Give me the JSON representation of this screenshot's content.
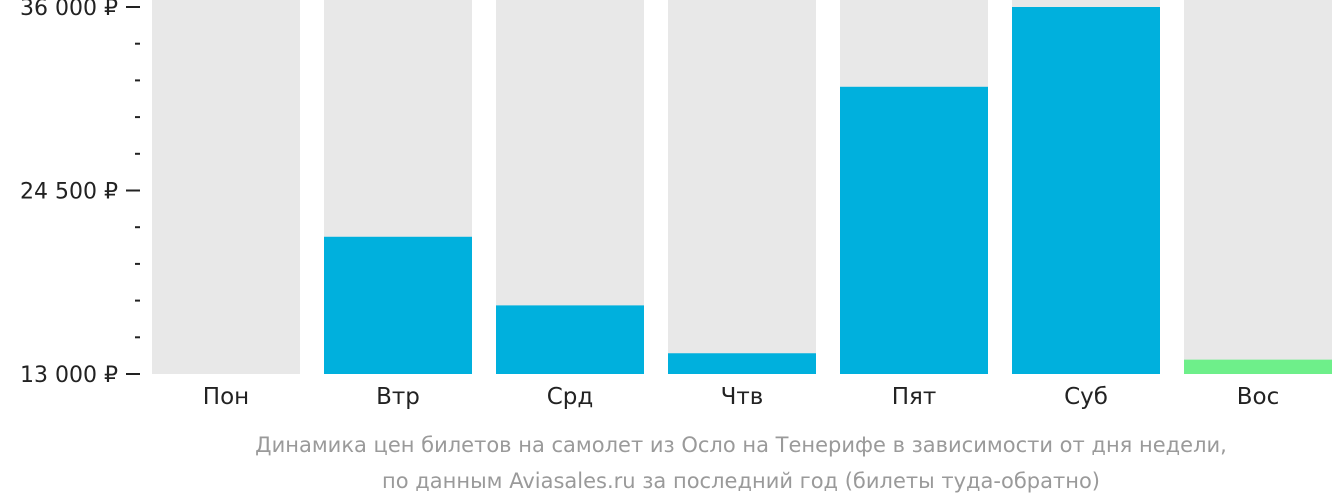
{
  "chart_data": {
    "type": "bar",
    "categories": [
      "Пон",
      "Втр",
      "Срд",
      "Чтв",
      "Пят",
      "Суб",
      "Вос"
    ],
    "values": [
      null,
      21600,
      17300,
      14300,
      31000,
      36000,
      13900
    ],
    "ylim": [
      13000,
      36000
    ],
    "y_major_ticks": [
      13000,
      24500,
      36000
    ],
    "y_tick_labels": [
      "13 000 ₽",
      "24 500 ₽",
      "36 000 ₽"
    ],
    "y_minor_ticks": [
      15300,
      17600,
      19900,
      22200,
      26800,
      29100,
      31400,
      33700
    ],
    "caption_line1": "Динамика цен билетов на самолет из Осло на Тенерифе в зависимости от дня недели,",
    "caption_line2": "по данным Aviasales.ru за последний год (билеты туда-обратно)",
    "colors": {
      "bar": "#00b0dd",
      "bar_min": "#6eef8a",
      "bar_background": "#e8e8e8",
      "axis": "#222222",
      "caption": "#9a9a9a"
    }
  }
}
